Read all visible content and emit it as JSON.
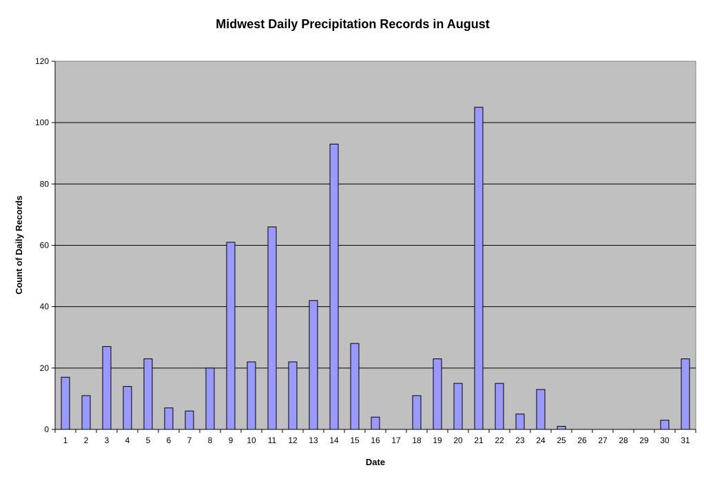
{
  "chart_data": {
    "type": "bar",
    "title": "Midwest Daily Precipitation Records in August",
    "xlabel": "Date",
    "ylabel": "Count of Daily Records",
    "categories": [
      "1",
      "2",
      "3",
      "4",
      "5",
      "6",
      "7",
      "8",
      "9",
      "10",
      "11",
      "12",
      "13",
      "14",
      "15",
      "16",
      "17",
      "18",
      "19",
      "20",
      "21",
      "22",
      "23",
      "24",
      "25",
      "26",
      "27",
      "28",
      "29",
      "30",
      "31"
    ],
    "values": [
      17,
      11,
      27,
      14,
      23,
      7,
      6,
      20,
      61,
      22,
      66,
      22,
      42,
      93,
      28,
      4,
      0,
      11,
      23,
      15,
      105,
      15,
      5,
      13,
      1,
      0,
      0,
      0,
      0,
      3,
      23
    ],
    "ylim": [
      0,
      120
    ],
    "yticks": [
      0,
      20,
      40,
      60,
      80,
      100,
      120
    ],
    "grid": true,
    "legend": "none",
    "colors": {
      "bar_fill": "#9999ff",
      "bar_stroke": "#000000",
      "plot_background": "#c0c0c0",
      "gridline": "#000000"
    }
  }
}
